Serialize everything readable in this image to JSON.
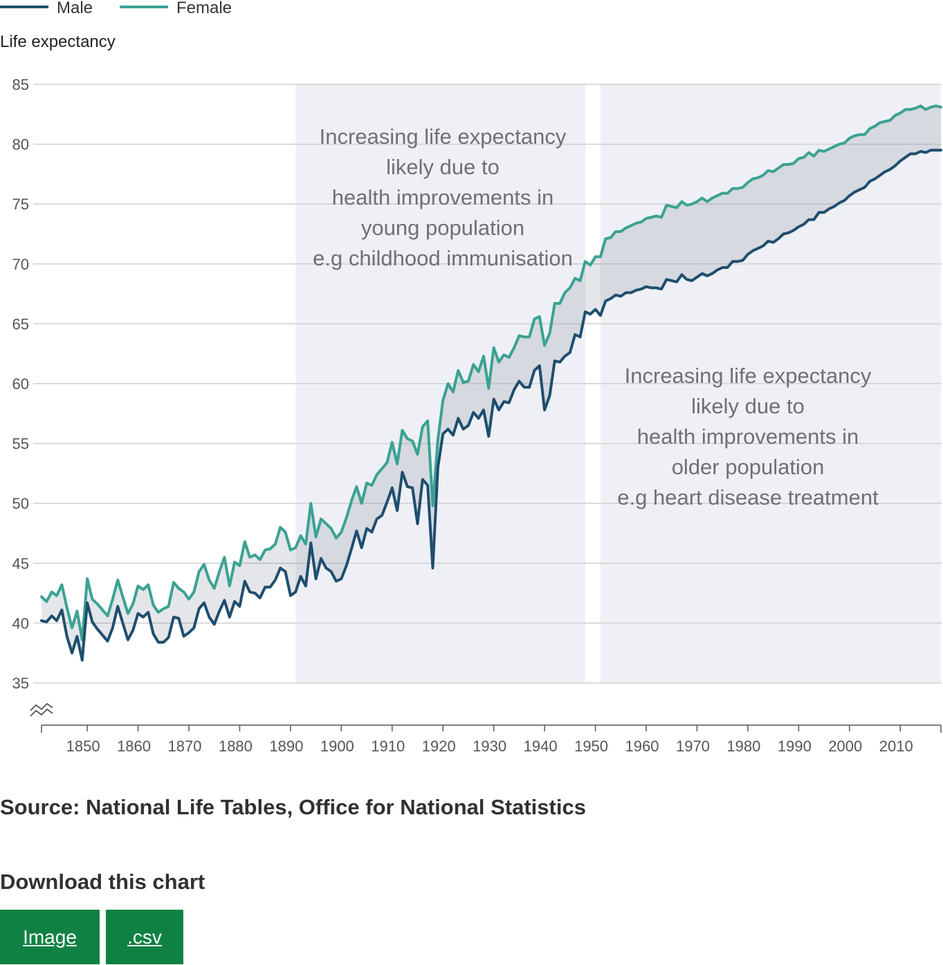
{
  "chart_data": {
    "type": "line",
    "ylabel": "Life expectancy",
    "ylim": [
      35,
      85
    ],
    "yticks": [
      35,
      40,
      45,
      50,
      55,
      60,
      65,
      70,
      75,
      80,
      85
    ],
    "xlim": [
      1841,
      2018
    ],
    "xticks": [
      1850,
      1860,
      1870,
      1880,
      1890,
      1900,
      1910,
      1920,
      1930,
      1940,
      1950,
      1960,
      1970,
      1980,
      1990,
      2000,
      2010
    ],
    "axis_break": true,
    "grid": true,
    "legend_position": "top-left",
    "series": [
      {
        "name": "Male",
        "color": "#206095",
        "stroke": "#1e4e6e",
        "start_year": 1841,
        "values": [
          40.2,
          40.1,
          40.6,
          40.2,
          41.1,
          38.9,
          37.5,
          38.9,
          36.9,
          41.7,
          40.1,
          39.5,
          39.0,
          38.5,
          39.6,
          41.4,
          40.0,
          38.6,
          39.4,
          40.8,
          40.5,
          40.9,
          39.1,
          38.4,
          38.4,
          38.8,
          40.5,
          40.4,
          38.9,
          39.2,
          39.6,
          41.2,
          41.7,
          40.5,
          39.9,
          41.0,
          41.9,
          40.5,
          41.8,
          41.4,
          43.5,
          42.6,
          42.5,
          42.1,
          43.0,
          43.0,
          43.6,
          44.6,
          44.3,
          42.3,
          42.6,
          43.9,
          43.1,
          46.7,
          43.7,
          45.4,
          44.6,
          44.3,
          43.5,
          43.7,
          44.8,
          46.2,
          47.7,
          46.3,
          47.9,
          47.6,
          48.7,
          49.0,
          50.1,
          51.3,
          49.4,
          52.6,
          51.4,
          51.3,
          48.3,
          52.0,
          51.5,
          44.6,
          53.0,
          55.8,
          56.2,
          55.7,
          57.1,
          56.2,
          56.5,
          57.6,
          57.1,
          57.8,
          55.6,
          58.7,
          57.8,
          58.5,
          58.4,
          59.5,
          60.2,
          59.7,
          59.7,
          61.1,
          61.5,
          57.8,
          59.0,
          61.9,
          61.8,
          62.3,
          62.6,
          64.1,
          63.9,
          66.0,
          65.8,
          66.2,
          65.7,
          66.9,
          67.1,
          67.4,
          67.3,
          67.6,
          67.6,
          67.8,
          67.9,
          68.1,
          68.0,
          68.0,
          67.9,
          68.7,
          68.6,
          68.5,
          69.1,
          68.7,
          68.6,
          68.9,
          69.2,
          69.0,
          69.2,
          69.5,
          69.7,
          69.7,
          70.2,
          70.2,
          70.3,
          70.8,
          71.1,
          71.3,
          71.5,
          71.9,
          71.8,
          72.1,
          72.5,
          72.6,
          72.8,
          73.1,
          73.3,
          73.7,
          73.7,
          74.3,
          74.3,
          74.6,
          74.8,
          75.1,
          75.3,
          75.7,
          76.0,
          76.2,
          76.4,
          76.9,
          77.1,
          77.4,
          77.7,
          77.9,
          78.2,
          78.6,
          78.9,
          79.2,
          79.2,
          79.4,
          79.3,
          79.5,
          79.5,
          79.5
        ]
      },
      {
        "name": "Female",
        "color": "#27a0a0",
        "stroke": "#3aa293",
        "start_year": 1841,
        "values": [
          42.2,
          41.8,
          42.6,
          42.3,
          43.2,
          41.3,
          39.6,
          41.0,
          38.6,
          43.7,
          42.0,
          41.6,
          41.1,
          40.6,
          42.0,
          43.6,
          42.2,
          40.8,
          41.6,
          43.1,
          42.8,
          43.2,
          41.5,
          40.9,
          41.2,
          41.4,
          43.4,
          42.9,
          42.6,
          42.0,
          42.6,
          44.3,
          44.9,
          43.6,
          42.9,
          44.3,
          45.5,
          43.1,
          45.1,
          44.8,
          46.8,
          45.5,
          45.7,
          45.3,
          46.1,
          46.2,
          46.6,
          48.0,
          47.6,
          46.1,
          46.3,
          47.3,
          46.6,
          50.0,
          47.2,
          48.7,
          48.3,
          47.9,
          47.1,
          47.6,
          48.8,
          50.2,
          51.4,
          50.0,
          51.7,
          51.5,
          52.4,
          52.9,
          53.4,
          55.1,
          53.3,
          56.1,
          55.4,
          55.2,
          54.1,
          56.4,
          56.9,
          49.8,
          55.3,
          58.6,
          60.0,
          59.3,
          61.1,
          60.1,
          60.2,
          61.6,
          61.0,
          62.3,
          59.6,
          63.0,
          61.8,
          62.4,
          62.2,
          63.0,
          64.0,
          63.9,
          63.9,
          65.4,
          65.6,
          63.2,
          64.2,
          66.7,
          66.7,
          67.6,
          68.0,
          68.8,
          68.6,
          70.2,
          69.9,
          70.6,
          70.6,
          72.1,
          72.2,
          72.7,
          72.7,
          73.0,
          73.2,
          73.4,
          73.5,
          73.8,
          73.9,
          74.0,
          73.9,
          74.9,
          74.8,
          74.7,
          75.2,
          74.9,
          75.0,
          75.2,
          75.5,
          75.2,
          75.5,
          75.7,
          75.9,
          75.9,
          76.3,
          76.3,
          76.4,
          76.8,
          77.1,
          77.2,
          77.4,
          77.8,
          77.7,
          78.0,
          78.3,
          78.3,
          78.4,
          78.8,
          78.9,
          79.3,
          79.0,
          79.5,
          79.4,
          79.6,
          79.8,
          80.0,
          80.1,
          80.5,
          80.7,
          80.8,
          80.8,
          81.3,
          81.5,
          81.8,
          81.9,
          82.0,
          82.4,
          82.6,
          82.9,
          82.9,
          83.0,
          83.2,
          82.9,
          83.1,
          83.2,
          83.1
        ]
      }
    ],
    "shaded_periods": [
      [
        1891,
        1948
      ],
      [
        1951,
        2018
      ]
    ],
    "annotations": [
      {
        "lines": [
          "Increasing life expectancy",
          "likely due to",
          "health improvements in",
          "young population",
          "e.g childhood immunisation"
        ]
      },
      {
        "lines": [
          "Increasing life expectancy",
          "likely due to",
          "health improvements in",
          "older population",
          "e.g heart disease treatment"
        ]
      }
    ]
  },
  "source_text": "Source: National Life Tables, Office for National Statistics",
  "download": {
    "title": "Download this chart",
    "image_label": "Image",
    "csv_label": ".csv"
  }
}
